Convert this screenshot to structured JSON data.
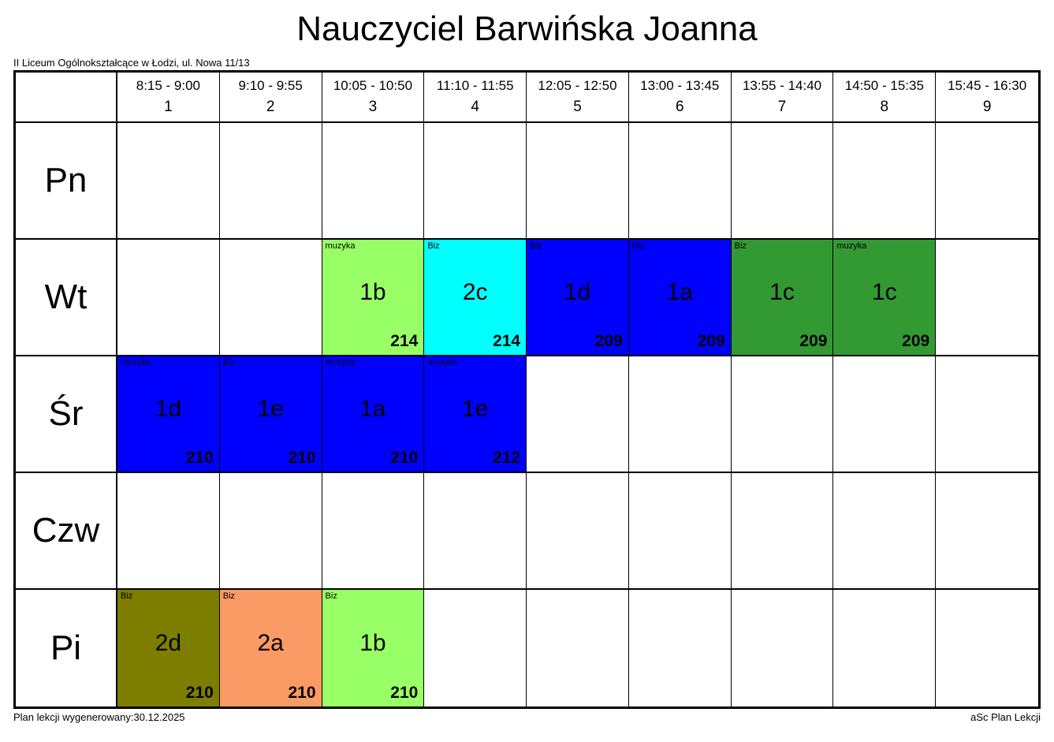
{
  "page": {
    "title": "Nauczyciel Barwińska Joanna",
    "subtitle": "II Liceum Ogólnokształcące w Łodzi, ul. Nowa 11/13",
    "footer_left": "Plan lekcji wygenerowany:30.12.2025",
    "footer_right": "aSc Plan Lekcji"
  },
  "timetable": {
    "periods": [
      {
        "time": "8:15 - 9:00",
        "number": "1"
      },
      {
        "time": "9:10 - 9:55",
        "number": "2"
      },
      {
        "time": "10:05 - 10:50",
        "number": "3"
      },
      {
        "time": "11:10 - 11:55",
        "number": "4"
      },
      {
        "time": "12:05 - 12:50",
        "number": "5"
      },
      {
        "time": "13:00 - 13:45",
        "number": "6"
      },
      {
        "time": "13:55 - 14:40",
        "number": "7"
      },
      {
        "time": "14:50 - 15:35",
        "number": "8"
      },
      {
        "time": "15:45 - 16:30",
        "number": "9"
      }
    ],
    "days": [
      {
        "label": "Pn",
        "lessons": [
          null,
          null,
          null,
          null,
          null,
          null,
          null,
          null,
          null
        ]
      },
      {
        "label": "Wt",
        "lessons": [
          null,
          null,
          {
            "subject": "muzyka",
            "class_name": "1b",
            "room": "214",
            "color": "#99FF66"
          },
          {
            "subject": "Biz",
            "class_name": "2c",
            "room": "214",
            "color": "#00FFFF"
          },
          {
            "subject": "Biz",
            "class_name": "1d",
            "room": "209",
            "color": "#0000FF"
          },
          {
            "subject": "Biz",
            "class_name": "1a",
            "room": "209",
            "color": "#0000FF"
          },
          {
            "subject": "Biz",
            "class_name": "1c",
            "room": "209",
            "color": "#339933"
          },
          {
            "subject": "muzyka",
            "class_name": "1c",
            "room": "209",
            "color": "#339933"
          },
          null
        ]
      },
      {
        "label": "Śr",
        "lessons": [
          {
            "subject": "muzyka",
            "class_name": "1d",
            "room": "210",
            "color": "#0000FF"
          },
          {
            "subject": "Biz",
            "class_name": "1e",
            "room": "210",
            "color": "#0000FF"
          },
          {
            "subject": "muzyka",
            "class_name": "1a",
            "room": "210",
            "color": "#0000FF"
          },
          {
            "subject": "muzyka",
            "class_name": "1e",
            "room": "212",
            "color": "#0000FF"
          },
          null,
          null,
          null,
          null,
          null
        ]
      },
      {
        "label": "Czw",
        "lessons": [
          null,
          null,
          null,
          null,
          null,
          null,
          null,
          null,
          null
        ]
      },
      {
        "label": "Pi",
        "lessons": [
          {
            "subject": "Biz",
            "class_name": "2d",
            "room": "210",
            "color": "#7D7D00"
          },
          {
            "subject": "Biz",
            "class_name": "2a",
            "room": "210",
            "color": "#FA9A64"
          },
          {
            "subject": "Biz",
            "class_name": "1b",
            "room": "210",
            "color": "#99FF66"
          },
          null,
          null,
          null,
          null,
          null,
          null
        ]
      }
    ]
  },
  "colors": {
    "border": "#000000",
    "background": "#FFFFFF",
    "text": "#000000"
  }
}
